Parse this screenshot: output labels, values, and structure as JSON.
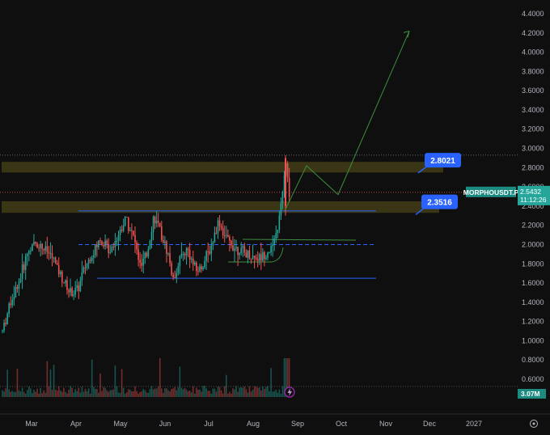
{
  "chart_data": {
    "type": "candlestick",
    "symbol": "MORPHOUSDT.P",
    "last_price": "2.5432",
    "countdown": "11:12:26",
    "volume_label": "3.07M",
    "ylim": [
      0.52,
      4.46
    ],
    "y_ticks": [
      "4.4000",
      "4.2000",
      "4.0000",
      "3.8000",
      "3.6000",
      "3.4000",
      "3.2000",
      "3.0000",
      "2.8000",
      "2.6000",
      "2.4000",
      "2.2000",
      "2.0000",
      "1.8000",
      "1.6000",
      "1.4000",
      "1.2000",
      "1.0000",
      "0.8000",
      "0.6000"
    ],
    "x_ticks": [
      "Mar",
      "Apr",
      "May",
      "Jun",
      "Jul",
      "Aug",
      "Sep",
      "Oct",
      "Nov",
      "Dec",
      "2027"
    ],
    "colors": {
      "up": "#26a69a",
      "down": "#ef5350",
      "background": "#0f0f0f",
      "label_box": "#2962ff",
      "zone": "#4a4418",
      "projection": "#3d8f3d"
    },
    "annotations": [
      {
        "label": "2.8021",
        "price": 2.8021,
        "zone": [
          2.75,
          2.86
        ]
      },
      {
        "label": "2.3516",
        "price": 2.3516,
        "zone": [
          2.33,
          2.45
        ]
      }
    ],
    "levels": [
      {
        "price": 2.35,
        "style": "solid",
        "color": "#2962ff"
      },
      {
        "price": 2.0,
        "style": "dashed",
        "color": "#2962ff"
      },
      {
        "price": 1.65,
        "style": "solid",
        "color": "#2962ff"
      },
      {
        "price": 2.93,
        "style": "dotted",
        "color": "#787b86"
      },
      {
        "price": 2.5432,
        "style": "dotted",
        "color": "#ef5350"
      }
    ],
    "projection_path_prices": [
      2.35,
      2.82,
      2.52,
      4.22
    ]
  }
}
